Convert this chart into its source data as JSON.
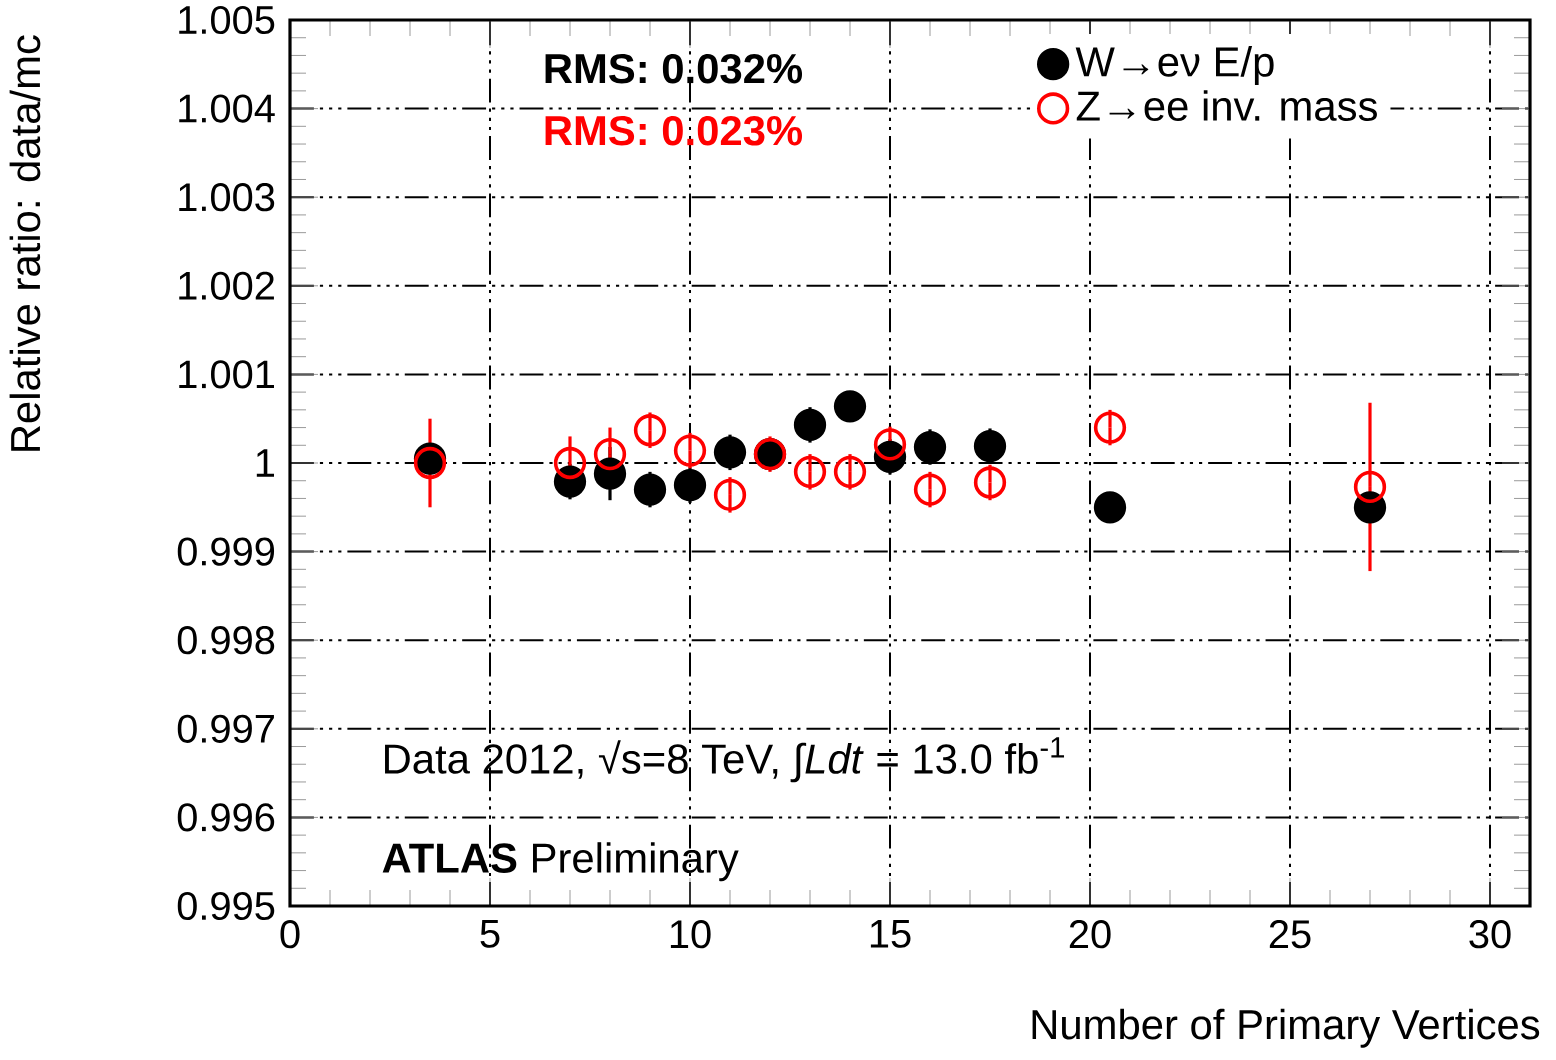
{
  "chart_data": {
    "type": "scatter",
    "xlabel": "Number of Primary Vertices",
    "ylabel": "Relative ratio: data/mc",
    "x": [
      3.5,
      7,
      8,
      9,
      10,
      11,
      12,
      13,
      14,
      15,
      16,
      17.5,
      20.5,
      27
    ],
    "series": [
      {
        "name": "W→eν E/p",
        "color": "#000000",
        "values": [
          1.00005,
          0.99979,
          0.99988,
          0.9997,
          0.99975,
          1.00012,
          1.0001,
          1.00043,
          1.00064,
          1.00007,
          1.00018,
          1.00019,
          0.9995,
          0.9995
        ],
        "errors": [
          null,
          0.0002,
          0.0003,
          0.0002,
          0.0002,
          0.0002,
          0.0001,
          0.0002,
          0.0001,
          0.0002,
          0.0002,
          0.0002,
          0.0001,
          0.0001
        ]
      },
      {
        "name": "Z→ee inv. mass",
        "color": "#ff0000",
        "values": [
          1.0,
          1.0,
          1.0001,
          1.00037,
          1.00014,
          0.99964,
          1.0001,
          0.9999,
          0.9999,
          1.00021,
          0.9997,
          0.99978,
          1.0004,
          0.99973
        ],
        "errors": [
          0.0005,
          0.0003,
          0.0003,
          0.0002,
          0.0002,
          0.0002,
          0.0002,
          0.0002,
          0.0002,
          0.0002,
          0.0002,
          0.0002,
          0.0002,
          0.00095
        ]
      }
    ],
    "xlim": [
      0,
      31
    ],
    "xticks": [
      0,
      5,
      10,
      15,
      20,
      25,
      30
    ],
    "ylim": [
      0.995,
      1.005
    ],
    "yticks": [
      0.995,
      0.996,
      0.997,
      0.998,
      0.999,
      1,
      1.001,
      1.002,
      1.003,
      1.004,
      1.005
    ],
    "grid": true,
    "legend": "top right",
    "marker": "circle",
    "annotations": [
      "RMS: 0.032%",
      "RMS: 0.023%",
      "Data 2012, √s=8 TeV, ∫*Ldt* = 13.0 fb$^{-1}$",
      "**ATLAS**     Preliminary"
    ]
  }
}
